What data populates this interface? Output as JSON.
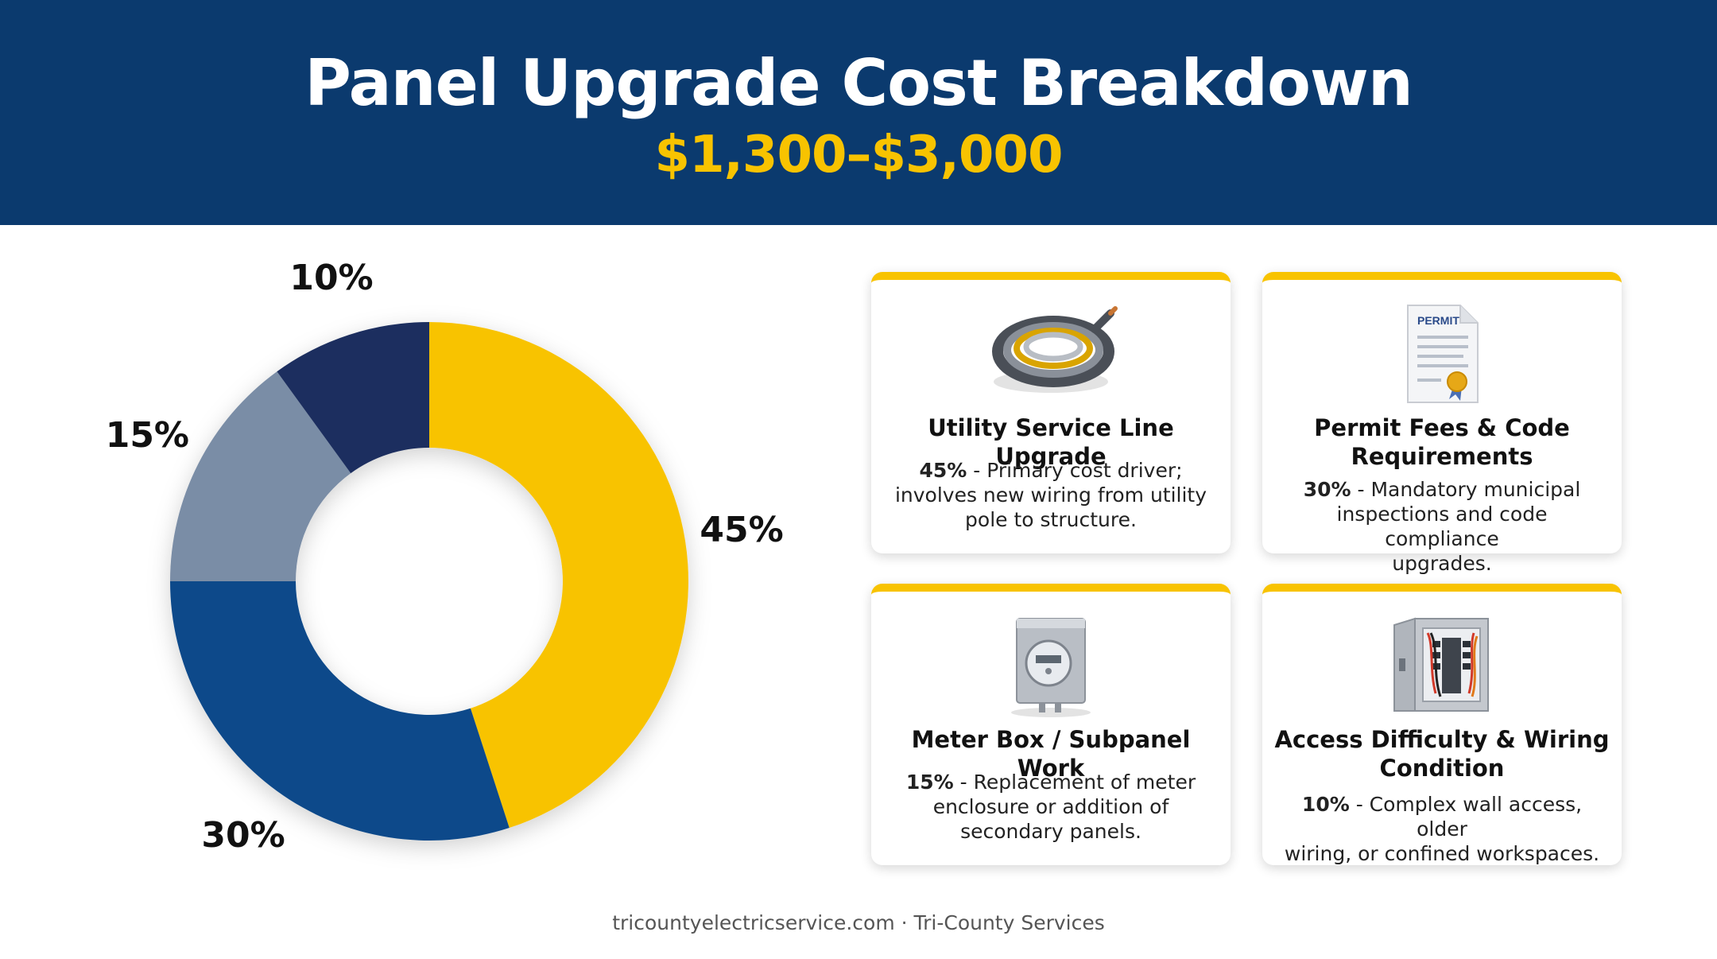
{
  "header": {
    "title": "Panel Upgrade Cost Breakdown",
    "subtitle": "$1,300–$3,000"
  },
  "chart_data": {
    "type": "pie",
    "donut": true,
    "start": "top, clockwise",
    "categories": [
      "Utility Service Line Upgrade",
      "Permit Fees & Code Requirements",
      "Meter Box / Subpanel Work",
      "Access Difficulty & Wiring Condition"
    ],
    "values": [
      45,
      30,
      15,
      10
    ],
    "labels": [
      "45%",
      "30%",
      "15%",
      "10%"
    ],
    "colors": [
      "#f8c300",
      "#0d4a8a",
      "#7a8da6",
      "#1c2f5e"
    ]
  },
  "cards": [
    {
      "icon": "wire-coil-icon",
      "title": "Utility Service Line Upgrade",
      "pct": "45%",
      "desc_lines": [
        " - Primary cost driver;",
        "involves new wiring from utility",
        "pole to structure."
      ]
    },
    {
      "icon": "permit-document-icon",
      "icon_text": "PERMIT",
      "title": "Permit Fees & Code Requirements",
      "pct": "30%",
      "desc_lines": [
        " - Mandatory municipal",
        "inspections and code compliance",
        "upgrades."
      ]
    },
    {
      "icon": "electric-meter-icon",
      "title": "Meter Box / Subpanel Work",
      "pct": "15%",
      "desc_lines": [
        " - Replacement of meter",
        "enclosure or addition of",
        "secondary panels."
      ]
    },
    {
      "icon": "breaker-panel-icon",
      "title": "Access Difficulty & Wiring Condition",
      "pct": "10%",
      "desc_lines": [
        " - Complex wall access, older",
        "wiring, or confined workspaces."
      ]
    }
  ],
  "footer": "tricountyelectricservice.com · Tri-County Services"
}
